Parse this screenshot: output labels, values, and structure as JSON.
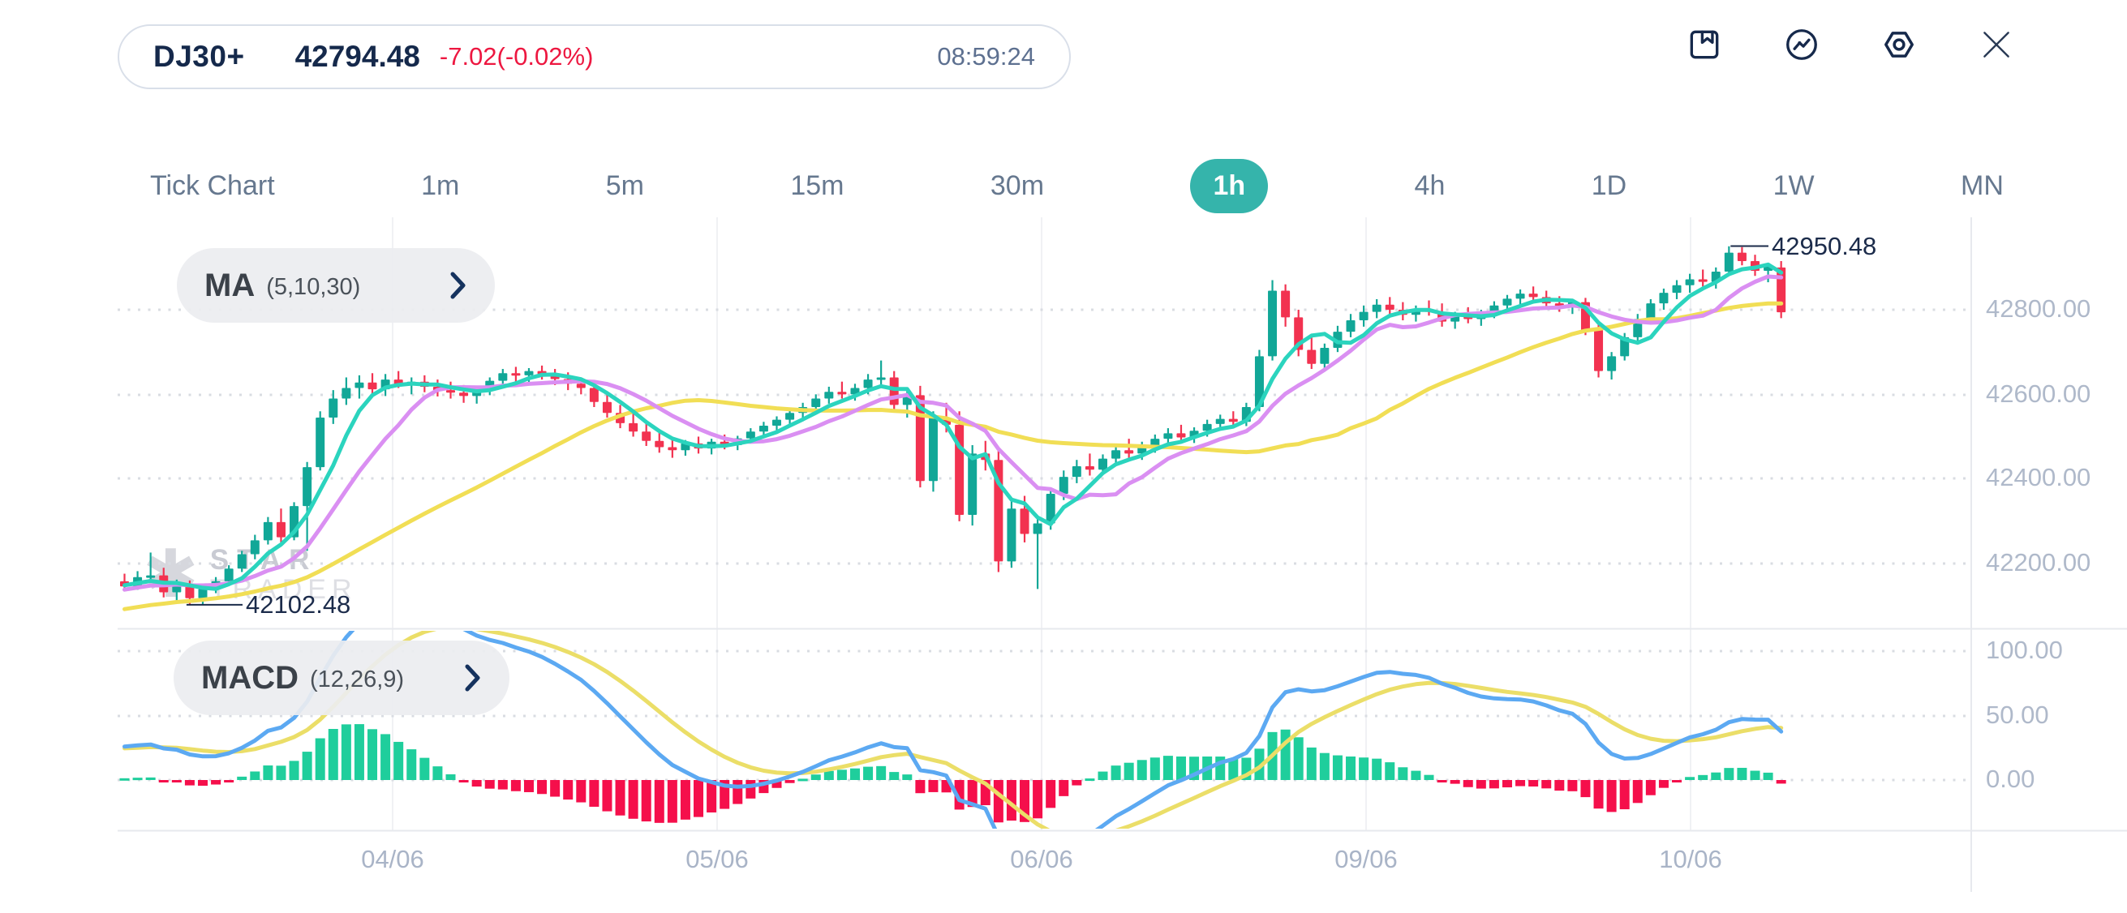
{
  "header": {
    "symbol": "DJ30+",
    "price": "42794.48",
    "change": "-7.02(-0.02%)",
    "time": "08:59:24"
  },
  "toolbar": {
    "icons": [
      "bookmark",
      "trend-circle",
      "settings-nut",
      "close"
    ]
  },
  "tabs": {
    "items": [
      "Tick Chart",
      "1m",
      "5m",
      "15m",
      "30m",
      "1h",
      "4h",
      "1D",
      "1W",
      "MN"
    ],
    "active": "1h"
  },
  "main_chart": {
    "ma_label": "MA",
    "ma_params": "(5,10,30)",
    "high_tag": "42950.48",
    "low_tag": "42102.48",
    "y_axis": [
      "42800.00",
      "42600.00",
      "42400.00",
      "42200.00"
    ]
  },
  "macd_panel": {
    "label": "MACD",
    "params": "(12,26,9)",
    "y_axis": [
      "100.00",
      "50.00",
      "0.00"
    ]
  },
  "x_axis": [
    "04/06",
    "05/06",
    "06/06",
    "09/06",
    "10/06"
  ],
  "watermark": {
    "star_glyph": "✱",
    "line1": "STAR",
    "line2": "TRADER"
  },
  "colors": {
    "accent": "#35B4AB",
    "navy": "#15294B",
    "change_red": "#ED1740",
    "candle_up": "#11A797",
    "candle_down": "#F23250",
    "ma5": "#2BD4BE",
    "ma10": "#DA8FF2",
    "ma30": "#F1DE55",
    "macd_line": "#5CA9F2",
    "signal_line": "#EBDE68",
    "hist_up": "#1FCE9C",
    "hist_down": "#F50F4B",
    "grid_dot": "#D9DCE2",
    "grid_solid": "#F0F1F4",
    "frame": "#E7E9EE",
    "tag_line": "#1B2B4A"
  },
  "chart_data": {
    "type": "candlestick",
    "symbol": "DJ30+",
    "interval": "1h",
    "title": "DJ30+ 1h candlestick chart with MA(5,10,30) overlay and MACD(12,26,9) sub-panel",
    "x_labels": [
      "04/06",
      "05/06",
      "06/06",
      "09/06",
      "10/06"
    ],
    "price_axis_ticks": [
      42800,
      42600,
      42400,
      42200
    ],
    "macd_axis_ticks": [
      100,
      50,
      0
    ],
    "session_high": 42950.48,
    "session_low": 42102.48,
    "last_price": 42794.48,
    "ma_periods": [
      5,
      10,
      30
    ],
    "macd_params": [
      12,
      26,
      9
    ],
    "candles_ohlc": [
      [
        42158,
        42176,
        42136,
        42146
      ],
      [
        42146,
        42182,
        42138,
        42168
      ],
      [
        42168,
        42226,
        42154,
        42172
      ],
      [
        42172,
        42190,
        42120,
        42132
      ],
      [
        42132,
        42162,
        42108,
        42152
      ],
      [
        42152,
        42160,
        42102,
        42118
      ],
      [
        42118,
        42148,
        42104,
        42140
      ],
      [
        42140,
        42168,
        42130,
        42158
      ],
      [
        42158,
        42196,
        42150,
        42188
      ],
      [
        42188,
        42230,
        42180,
        42222
      ],
      [
        42222,
        42268,
        42210,
        42255
      ],
      [
        42255,
        42310,
        42245,
        42298
      ],
      [
        42298,
        42330,
        42250,
        42262
      ],
      [
        42262,
        42345,
        42255,
        42336
      ],
      [
        42336,
        42440,
        42230,
        42428
      ],
      [
        42428,
        42560,
        42420,
        42545
      ],
      [
        42545,
        42610,
        42530,
        42590
      ],
      [
        42590,
        42640,
        42575,
        42615
      ],
      [
        42615,
        42645,
        42590,
        42628
      ],
      [
        42628,
        42650,
        42600,
        42612
      ],
      [
        42612,
        42648,
        42596,
        42635
      ],
      [
        42635,
        42655,
        42615,
        42622
      ],
      [
        42622,
        42640,
        42600,
        42630
      ],
      [
        42630,
        42645,
        42605,
        42618
      ],
      [
        42618,
        42635,
        42595,
        42610
      ],
      [
        42610,
        42630,
        42590,
        42604
      ],
      [
        42604,
        42622,
        42580,
        42596
      ],
      [
        42596,
        42618,
        42578,
        42608
      ],
      [
        42608,
        42640,
        42598,
        42632
      ],
      [
        42632,
        42660,
        42620,
        42650
      ],
      [
        42650,
        42665,
        42630,
        42645
      ],
      [
        42645,
        42662,
        42628,
        42655
      ],
      [
        42655,
        42668,
        42635,
        42648
      ],
      [
        42648,
        42660,
        42622,
        42636
      ],
      [
        42636,
        42652,
        42610,
        42625
      ],
      [
        42625,
        42640,
        42600,
        42615
      ],
      [
        42615,
        42625,
        42570,
        42582
      ],
      [
        42582,
        42600,
        42545,
        42556
      ],
      [
        42556,
        42575,
        42520,
        42532
      ],
      [
        42532,
        42558,
        42500,
        42512
      ],
      [
        42512,
        42535,
        42478,
        42490
      ],
      [
        42490,
        42515,
        42462,
        42475
      ],
      [
        42475,
        42498,
        42450,
        42468
      ],
      [
        42468,
        42492,
        42455,
        42484
      ],
      [
        42484,
        42500,
        42460,
        42472
      ],
      [
        42472,
        42495,
        42458,
        42488
      ],
      [
        42488,
        42505,
        42470,
        42480
      ],
      [
        42480,
        42502,
        42468,
        42496
      ],
      [
        42496,
        42520,
        42485,
        42512
      ],
      [
        42512,
        42535,
        42500,
        42526
      ],
      [
        42526,
        42548,
        42512,
        42540
      ],
      [
        42540,
        42565,
        42528,
        42556
      ],
      [
        42556,
        42580,
        42544,
        42570
      ],
      [
        42570,
        42600,
        42558,
        42590
      ],
      [
        42590,
        42618,
        42578,
        42606
      ],
      [
        42606,
        42630,
        42590,
        42600
      ],
      [
        42600,
        42625,
        42585,
        42615
      ],
      [
        42615,
        42648,
        42600,
        42635
      ],
      [
        42635,
        42680,
        42620,
        42640
      ],
      [
        42640,
        42655,
        42560,
        42575
      ],
      [
        42575,
        42610,
        42545,
        42598
      ],
      [
        42598,
        42620,
        42380,
        42395
      ],
      [
        42395,
        42560,
        42370,
        42545
      ],
      [
        42545,
        42580,
        42510,
        42528
      ],
      [
        42528,
        42560,
        42300,
        42315
      ],
      [
        42315,
        42480,
        42290,
        42460
      ],
      [
        42460,
        42490,
        42420,
        42445
      ],
      [
        42445,
        42470,
        42180,
        42205
      ],
      [
        42205,
        42350,
        42190,
        42330
      ],
      [
        42330,
        42360,
        42250,
        42270
      ],
      [
        42270,
        42310,
        42140,
        42295
      ],
      [
        42295,
        42380,
        42280,
        42365
      ],
      [
        42365,
        42420,
        42350,
        42405
      ],
      [
        42405,
        42445,
        42390,
        42430
      ],
      [
        42430,
        42460,
        42408,
        42422
      ],
      [
        42422,
        42458,
        42410,
        42448
      ],
      [
        42448,
        42480,
        42435,
        42468
      ],
      [
        42468,
        42495,
        42450,
        42460
      ],
      [
        42460,
        42488,
        42445,
        42478
      ],
      [
        42478,
        42505,
        42462,
        42495
      ],
      [
        42495,
        42520,
        42480,
        42508
      ],
      [
        42508,
        42528,
        42488,
        42498
      ],
      [
        42498,
        42522,
        42485,
        42514
      ],
      [
        42514,
        42540,
        42500,
        42530
      ],
      [
        42530,
        42552,
        42515,
        42542
      ],
      [
        42542,
        42560,
        42520,
        42535
      ],
      [
        42535,
        42580,
        42525,
        42570
      ],
      [
        42570,
        42705,
        42560,
        42690
      ],
      [
        42690,
        42870,
        42680,
        42845
      ],
      [
        42845,
        42860,
        42760,
        42782
      ],
      [
        42782,
        42800,
        42690,
        42705
      ],
      [
        42705,
        42740,
        42660,
        42672
      ],
      [
        42672,
        42720,
        42655,
        42710
      ],
      [
        42710,
        42762,
        42700,
        42748
      ],
      [
        42748,
        42790,
        42735,
        42775
      ],
      [
        42775,
        42810,
        42760,
        42795
      ],
      [
        42795,
        42825,
        42780,
        42812
      ],
      [
        42812,
        42830,
        42790,
        42800
      ],
      [
        42800,
        42818,
        42775,
        42788
      ],
      [
        42788,
        42810,
        42772,
        42802
      ],
      [
        42802,
        42822,
        42786,
        42795
      ],
      [
        42795,
        42815,
        42760,
        42772
      ],
      [
        42772,
        42795,
        42755,
        42786
      ],
      [
        42786,
        42806,
        42768,
        42778
      ],
      [
        42778,
        42800,
        42762,
        42792
      ],
      [
        42792,
        42820,
        42780,
        42810
      ],
      [
        42810,
        42835,
        42795,
        42826
      ],
      [
        42826,
        42848,
        42810,
        42838
      ],
      [
        42838,
        42855,
        42818,
        42830
      ],
      [
        42830,
        42845,
        42805,
        42815
      ],
      [
        42815,
        42832,
        42795,
        42806
      ],
      [
        42806,
        42825,
        42790,
        42818
      ],
      [
        42818,
        42828,
        42740,
        42752
      ],
      [
        42752,
        42770,
        42640,
        42655
      ],
      [
        42655,
        42700,
        42635,
        42690
      ],
      [
        42690,
        42745,
        42680,
        42735
      ],
      [
        42735,
        42790,
        42725,
        42778
      ],
      [
        42778,
        42825,
        42765,
        42815
      ],
      [
        42815,
        42850,
        42800,
        42840
      ],
      [
        42840,
        42870,
        42825,
        42858
      ],
      [
        42858,
        42885,
        42840,
        42872
      ],
      [
        42872,
        42895,
        42855,
        42866
      ],
      [
        42866,
        42900,
        42850,
        42890
      ],
      [
        42890,
        42950,
        42880,
        42935
      ],
      [
        42935,
        42948,
        42905,
        42915
      ],
      [
        42915,
        42930,
        42880,
        42892
      ],
      [
        42892,
        42910,
        42865,
        42902
      ],
      [
        42900,
        42915,
        42780,
        42794
      ]
    ]
  }
}
